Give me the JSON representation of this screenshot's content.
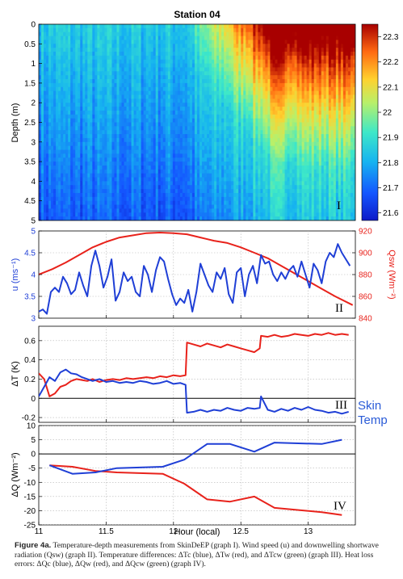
{
  "chart_data": [
    {
      "type": "heatmap",
      "title": "Station 04",
      "xlim": [
        11.0,
        13.35
      ],
      "ylabel": "Depth (m)",
      "y_ticks": [
        "0",
        "0.5",
        "1",
        "1.5",
        "2",
        "2.5",
        "3",
        "3.5",
        "4",
        "4.5",
        "5"
      ],
      "ylim": [
        0,
        5
      ],
      "colorbar_ticks": [
        "22.3",
        "22.2",
        "22.1",
        "22",
        "21.9",
        "21.8",
        "21.7",
        "21.6"
      ],
      "colorbar_range": [
        21.57,
        22.35
      ],
      "warm_region_start_hour": 12.1,
      "panel_label": "I"
    },
    {
      "type": "line",
      "left_axis": {
        "label": "u (ms⁻¹)",
        "ticks": [
          "3",
          "3.5",
          "4",
          "4.5",
          "5"
        ],
        "ylim": [
          3,
          5
        ],
        "color": "#1f3fd6"
      },
      "right_axis": {
        "label": "Qsw (Wm⁻²)",
        "ticks": [
          "840",
          "860",
          "880",
          "900",
          "920"
        ],
        "ylim": [
          840,
          920
        ],
        "color": "#e8221b"
      },
      "series": [
        {
          "axis": "left",
          "color": "#1f3fd6",
          "x": [
            11.0,
            11.03,
            11.06,
            11.09,
            11.12,
            11.15,
            11.18,
            11.21,
            11.24,
            11.27,
            11.3,
            11.33,
            11.36,
            11.39,
            11.42,
            11.45,
            11.48,
            11.51,
            11.54,
            11.57,
            11.6,
            11.63,
            11.66,
            11.69,
            11.72,
            11.75,
            11.78,
            11.81,
            11.84,
            11.87,
            11.9,
            11.93,
            11.96,
            11.99,
            12.02,
            12.05,
            12.08,
            12.11,
            12.14,
            12.17,
            12.2,
            12.23,
            12.26,
            12.29,
            12.32,
            12.35,
            12.38,
            12.41,
            12.44,
            12.47,
            12.5,
            12.53,
            12.56,
            12.59,
            12.62,
            12.65,
            12.68,
            12.71,
            12.74,
            12.77,
            12.8,
            12.83,
            12.86,
            12.89,
            12.92,
            12.95,
            12.98,
            13.01,
            13.04,
            13.07,
            13.1,
            13.13,
            13.16,
            13.19,
            13.22,
            13.25,
            13.28,
            13.31
          ],
          "values": [
            3.15,
            3.2,
            3.1,
            3.6,
            3.7,
            3.6,
            3.95,
            3.8,
            3.55,
            3.65,
            4.05,
            3.75,
            3.5,
            4.2,
            4.55,
            4.2,
            3.7,
            3.95,
            4.35,
            3.4,
            3.6,
            4.05,
            3.85,
            3.95,
            3.6,
            3.5,
            4.2,
            4.0,
            3.6,
            4.1,
            4.4,
            4.3,
            3.9,
            3.55,
            3.3,
            3.45,
            3.35,
            3.65,
            3.15,
            3.6,
            4.25,
            4.0,
            3.75,
            3.6,
            4.05,
            3.9,
            4.15,
            3.55,
            3.35,
            4.05,
            4.15,
            3.5,
            4.0,
            4.2,
            3.8,
            4.45,
            4.25,
            4.3,
            4.0,
            3.85,
            4.05,
            3.9,
            4.1,
            4.2,
            3.95,
            4.3,
            4.0,
            3.7,
            4.25,
            4.1,
            3.8,
            4.3,
            4.5,
            4.4,
            4.7,
            4.5,
            4.35,
            4.2
          ]
        },
        {
          "axis": "right",
          "color": "#e8221b",
          "x": [
            11.0,
            11.1,
            11.2,
            11.3,
            11.4,
            11.5,
            11.6,
            11.7,
            11.8,
            11.9,
            12.0,
            12.1,
            12.2,
            12.3,
            12.4,
            12.5,
            12.6,
            12.7,
            12.8,
            12.9,
            13.0,
            13.1,
            13.2,
            13.33
          ],
          "values": [
            880,
            885,
            891,
            898,
            905,
            910,
            914,
            916,
            918,
            918.5,
            918,
            917,
            914,
            911,
            909,
            905,
            900,
            895,
            888,
            881,
            874,
            867,
            860,
            852
          ]
        }
      ],
      "panel_label": "II"
    },
    {
      "type": "line",
      "ylabel": "ΔT (K)",
      "ticks": [
        "-0.2",
        "0",
        "0.2",
        "0.4",
        "0.6"
      ],
      "ylim": [
        -0.25,
        0.75
      ],
      "zero_line": true,
      "series": [
        {
          "color": "#1f3fd6",
          "x": [
            11.0,
            11.04,
            11.08,
            11.12,
            11.16,
            11.2,
            11.24,
            11.28,
            11.32,
            11.36,
            11.4,
            11.45,
            11.5,
            11.55,
            11.6,
            11.65,
            11.7,
            11.75,
            11.8,
            11.85,
            11.9,
            11.95,
            12.0,
            12.05,
            12.09,
            12.1,
            12.15,
            12.2,
            12.25,
            12.3,
            12.35,
            12.4,
            12.45,
            12.5,
            12.55,
            12.6,
            12.64,
            12.65,
            12.7,
            12.75,
            12.8,
            12.85,
            12.9,
            12.95,
            13.0,
            13.05,
            13.1,
            13.15,
            13.2,
            13.25,
            13.3
          ],
          "values": [
            0.02,
            0.12,
            0.22,
            0.18,
            0.27,
            0.3,
            0.26,
            0.25,
            0.22,
            0.2,
            0.18,
            0.2,
            0.17,
            0.18,
            0.16,
            0.17,
            0.16,
            0.18,
            0.17,
            0.15,
            0.16,
            0.18,
            0.15,
            0.16,
            0.14,
            -0.15,
            -0.14,
            -0.12,
            -0.14,
            -0.12,
            -0.13,
            -0.1,
            -0.12,
            -0.13,
            -0.1,
            -0.11,
            -0.1,
            0.02,
            -0.12,
            -0.14,
            -0.11,
            -0.13,
            -0.1,
            -0.12,
            -0.09,
            -0.12,
            -0.13,
            -0.15,
            -0.14,
            -0.16,
            -0.14
          ]
        },
        {
          "color": "#e8221b",
          "x": [
            11.0,
            11.04,
            11.08,
            11.12,
            11.16,
            11.2,
            11.24,
            11.28,
            11.32,
            11.36,
            11.4,
            11.45,
            11.5,
            11.55,
            11.6,
            11.65,
            11.7,
            11.75,
            11.8,
            11.85,
            11.9,
            11.95,
            12.0,
            12.05,
            12.09,
            12.1,
            12.15,
            12.2,
            12.25,
            12.3,
            12.35,
            12.4,
            12.45,
            12.5,
            12.55,
            12.6,
            12.64,
            12.65,
            12.7,
            12.75,
            12.8,
            12.85,
            12.9,
            12.95,
            13.0,
            13.05,
            13.1,
            13.15,
            13.2,
            13.25,
            13.3
          ],
          "values": [
            0.26,
            0.2,
            0.02,
            0.05,
            0.12,
            0.14,
            0.18,
            0.2,
            0.19,
            0.18,
            0.2,
            0.17,
            0.19,
            0.2,
            0.19,
            0.21,
            0.2,
            0.21,
            0.22,
            0.21,
            0.23,
            0.22,
            0.24,
            0.23,
            0.24,
            0.58,
            0.56,
            0.54,
            0.57,
            0.55,
            0.53,
            0.56,
            0.54,
            0.52,
            0.5,
            0.48,
            0.52,
            0.65,
            0.64,
            0.66,
            0.64,
            0.65,
            0.67,
            0.66,
            0.65,
            0.67,
            0.66,
            0.68,
            0.66,
            0.67,
            0.66
          ]
        }
      ],
      "panel_label": "III",
      "annotation": [
        "Skin",
        "Temp"
      ]
    },
    {
      "type": "line",
      "ylabel": "ΔQ (Wm⁻²)",
      "ticks": [
        "10",
        "5",
        "0",
        "-5",
        "-10",
        "-15",
        "-20",
        "-25"
      ],
      "ylim": [
        -25,
        10
      ],
      "zero_line": true,
      "xlabel": "Hour (local)",
      "x_ticks": [
        "11",
        "11.5",
        "12",
        "12.5",
        "13"
      ],
      "xlim": [
        11.0,
        13.35
      ],
      "series": [
        {
          "color": "#1f3fd6",
          "x": [
            11.08,
            11.25,
            11.42,
            11.58,
            11.92,
            12.08,
            12.25,
            12.42,
            12.6,
            12.75,
            13.1,
            13.25
          ],
          "values": [
            -4,
            -7,
            -6.5,
            -5,
            -4.5,
            -2,
            3.5,
            3.5,
            0.8,
            4,
            3.5,
            5
          ]
        },
        {
          "color": "#e8221b",
          "x": [
            11.08,
            11.25,
            11.42,
            11.58,
            11.92,
            12.08,
            12.25,
            12.42,
            12.6,
            12.75,
            13.1,
            13.25
          ],
          "values": [
            -4,
            -4.5,
            -6,
            -6.5,
            -7,
            -10.5,
            -16,
            -16.8,
            -15,
            -19,
            -20.5,
            -21.5
          ]
        }
      ],
      "panel_label": "IV"
    }
  ],
  "caption": {
    "label": "Figure 4a.",
    "text": " Temperature-depth measurements from SkinDeEP (graph I). Wind speed (u) and downwelling shortwave radiation (Qsw) (graph II). Temperature differences: ΔTc (blue), ΔTw (red), and ΔTcw (green) (graph III). Heat loss errors: ΔQc (blue), ΔQw (red), and ΔQcw (green) (graph IV)."
  }
}
